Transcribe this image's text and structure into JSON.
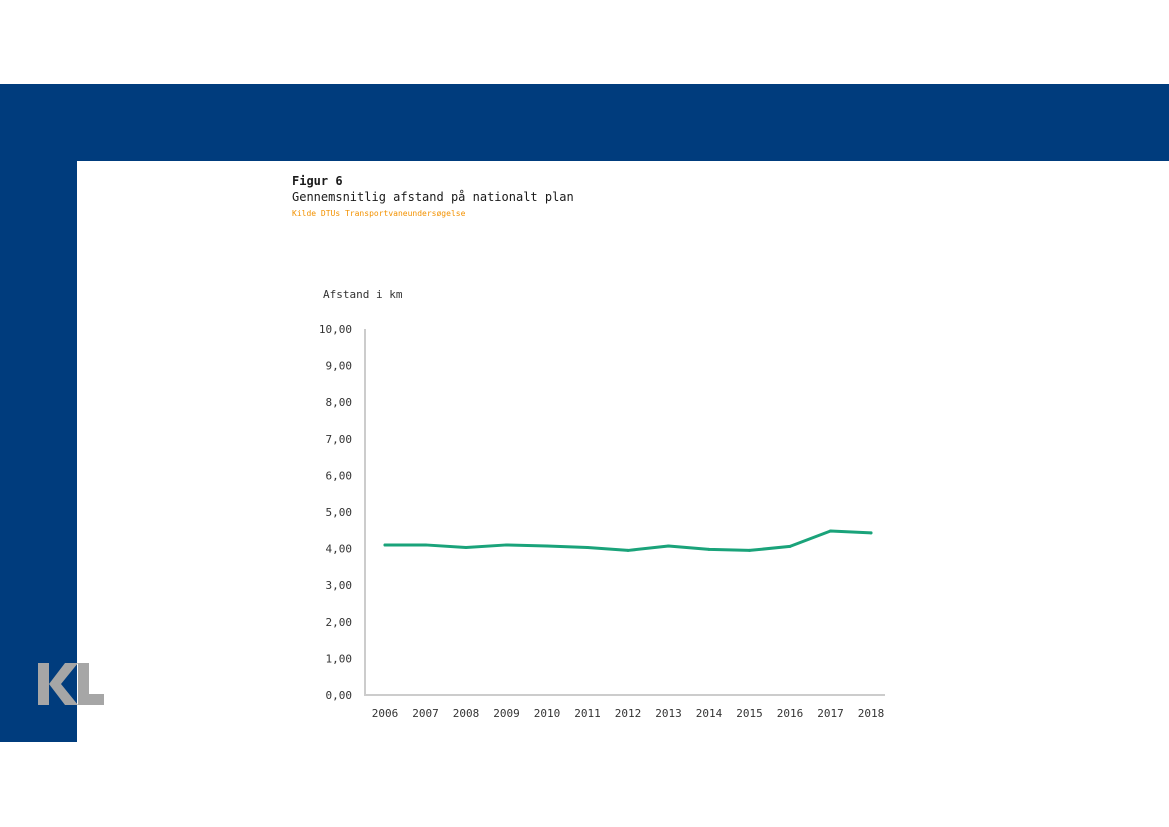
{
  "figure": {
    "label": "Figur 6",
    "title": "Gennemsnitlig afstand på nationalt plan",
    "source": "Kilde DTUs Transportvaneundersøgelse"
  },
  "logo": {
    "text": "KL",
    "color": "#a6a6a6"
  },
  "colors": {
    "band": "#003c7d",
    "line": "#1aa37a",
    "axis": "#cccccc",
    "source": "#f39200"
  },
  "chart_data": {
    "type": "line",
    "ylabel": "Afstand i km",
    "xlabel": "",
    "categories": [
      "2006",
      "2007",
      "2008",
      "2009",
      "2010",
      "2011",
      "2012",
      "2013",
      "2014",
      "2015",
      "2016",
      "2017",
      "2018"
    ],
    "values": [
      4.1,
      4.1,
      4.03,
      4.1,
      4.07,
      4.03,
      3.95,
      4.07,
      3.98,
      3.95,
      4.06,
      4.48,
      4.43
    ],
    "ylim": [
      0,
      10
    ],
    "yticks": [
      "0,00",
      "1,00",
      "2,00",
      "3,00",
      "4,00",
      "5,00",
      "6,00",
      "7,00",
      "8,00",
      "9,00",
      "10,00"
    ],
    "grid": false,
    "legend": "none"
  }
}
